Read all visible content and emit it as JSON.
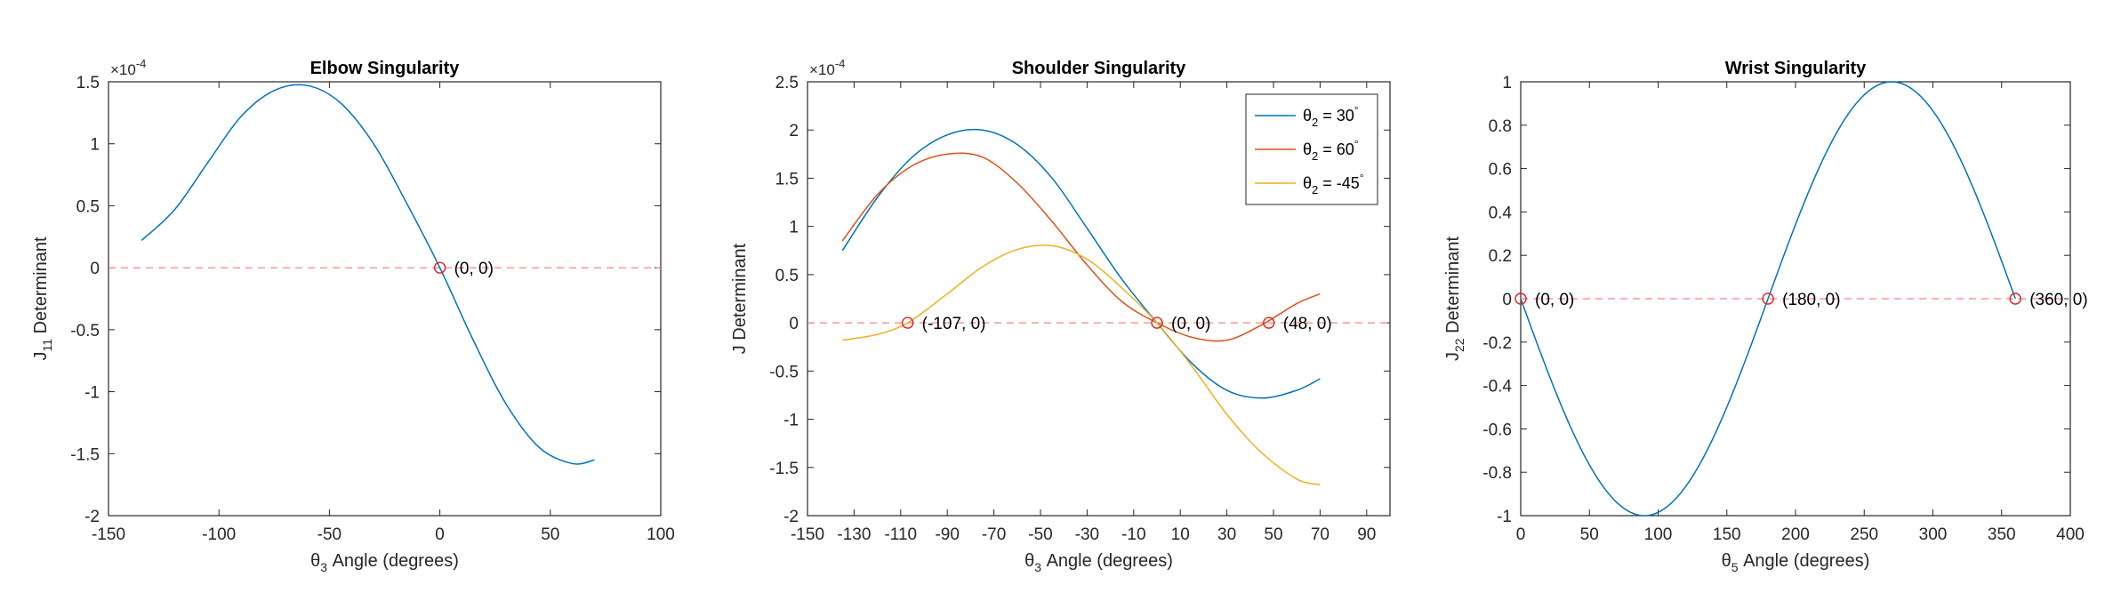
{
  "chart_data": [
    {
      "type": "line",
      "title": "Elbow Singularity",
      "xlabel": {
        "sym": "θ",
        "sub": "3",
        "rest": " Angle (degrees)"
      },
      "ylabel": {
        "sym": "J",
        "sub": "11",
        "rest": " Determinant"
      },
      "exponent": {
        "base": "×10",
        "power": "-4"
      },
      "xlim": [
        -150,
        100
      ],
      "ylim": [
        -2,
        1.5
      ],
      "xticks": [
        -150,
        -100,
        -50,
        0,
        50,
        100
      ],
      "xtick_labels": [
        "-150",
        "-100",
        "-50",
        "0",
        "50",
        "100"
      ],
      "yticks": [
        -2,
        -1.5,
        -1,
        -0.5,
        0,
        0.5,
        1,
        1.5
      ],
      "ytick_labels": [
        "-2",
        "-1.5",
        "-1",
        "-0.5",
        "0",
        "0.5",
        "1",
        "1.5"
      ],
      "series": [
        {
          "name": "J11",
          "color": "#0072BD",
          "x": [
            -135,
            -120,
            -105,
            -90,
            -75,
            -60,
            -45,
            -30,
            -15,
            0,
            15,
            30,
            45,
            60,
            70
          ],
          "y": [
            0.22,
            0.47,
            0.85,
            1.22,
            1.43,
            1.47,
            1.33,
            1.0,
            0.52,
            0.0,
            -0.58,
            -1.1,
            -1.45,
            -1.58,
            -1.55
          ]
        }
      ],
      "reference_line": {
        "y": 0,
        "color": "#FF8080"
      },
      "markers": [
        {
          "x": 0,
          "y": 0,
          "label": "(0, 0)"
        }
      ]
    },
    {
      "type": "line",
      "title": "Shoulder Singularity",
      "xlabel": {
        "sym": "θ",
        "sub": "3",
        "rest": " Angle (degrees)"
      },
      "ylabel": {
        "sym": "J",
        "sub": "",
        "rest": " Determinant"
      },
      "exponent": {
        "base": "×10",
        "power": "-4"
      },
      "xlim": [
        -150,
        100
      ],
      "ylim": [
        -2,
        2.5
      ],
      "xticks": [
        -150,
        -130,
        -110,
        -90,
        -70,
        -50,
        -30,
        -10,
        10,
        30,
        50,
        70,
        90
      ],
      "xtick_labels": [
        "-150",
        "-130",
        "-110",
        "-90",
        "-70",
        "-50",
        "-30",
        "-10",
        "10",
        "30",
        "50",
        "70",
        "90"
      ],
      "yticks": [
        -2,
        -1.5,
        -1,
        -0.5,
        0,
        0.5,
        1,
        1.5,
        2,
        2.5
      ],
      "ytick_labels": [
        "-2",
        "-1.5",
        "-1",
        "-0.5",
        "0",
        "0.5",
        "1",
        "1.5",
        "2",
        "2.5"
      ],
      "legend": {
        "position": "top-right"
      },
      "series": [
        {
          "name": "θ2 = 30°",
          "legend_sub": "2",
          "legend_val": " = 30",
          "color": "#0072BD",
          "x": [
            -135,
            -120,
            -105,
            -90,
            -75,
            -60,
            -45,
            -30,
            -15,
            0,
            15,
            30,
            45,
            60,
            70
          ],
          "y": [
            0.75,
            1.3,
            1.72,
            1.95,
            2.0,
            1.85,
            1.5,
            0.98,
            0.45,
            0.0,
            -0.42,
            -0.7,
            -0.78,
            -0.7,
            -0.58
          ]
        },
        {
          "name": "θ2 = 60°",
          "legend_sub": "2",
          "legend_val": " = 60",
          "color": "#D95319",
          "x": [
            -135,
            -120,
            -105,
            -90,
            -75,
            -60,
            -45,
            -30,
            -15,
            0,
            15,
            30,
            45,
            60,
            70
          ],
          "y": [
            0.85,
            1.33,
            1.63,
            1.75,
            1.72,
            1.45,
            1.05,
            0.6,
            0.22,
            0.0,
            -0.15,
            -0.18,
            -0.02,
            0.2,
            0.3
          ]
        },
        {
          "name": "θ2 = -45°",
          "legend_sub": "2",
          "legend_val": " = -45",
          "color": "#EDB120",
          "x": [
            -135,
            -120,
            -107,
            -90,
            -75,
            -60,
            -45,
            -30,
            -15,
            0,
            15,
            30,
            45,
            60,
            70
          ],
          "y": [
            -0.18,
            -0.12,
            0.0,
            0.3,
            0.58,
            0.76,
            0.8,
            0.66,
            0.36,
            0.0,
            -0.45,
            -0.95,
            -1.35,
            -1.62,
            -1.68
          ]
        }
      ],
      "reference_line": {
        "y": 0,
        "color": "#FF8080"
      },
      "markers": [
        {
          "x": -107,
          "y": 0,
          "label": "(-107, 0)"
        },
        {
          "x": 0,
          "y": 0,
          "label": "(0, 0)"
        },
        {
          "x": 48,
          "y": 0,
          "label": "(48, 0)"
        }
      ]
    },
    {
      "type": "line",
      "title": "Wrist Singularity",
      "xlabel": {
        "sym": "θ",
        "sub": "5",
        "rest": " Angle (degrees)"
      },
      "ylabel": {
        "sym": "J",
        "sub": "22",
        "rest": " Determinant"
      },
      "exponent": null,
      "xlim": [
        0,
        400
      ],
      "ylim": [
        -1,
        1
      ],
      "xticks": [
        0,
        50,
        100,
        150,
        200,
        250,
        300,
        350,
        400
      ],
      "xtick_labels": [
        "0",
        "50",
        "100",
        "150",
        "200",
        "250",
        "300",
        "350",
        "400"
      ],
      "yticks": [
        -1,
        -0.8,
        -0.6,
        -0.4,
        -0.2,
        0,
        0.2,
        0.4,
        0.6,
        0.8,
        1
      ],
      "ytick_labels": [
        "-1",
        "-0.8",
        "-0.6",
        "-0.4",
        "-0.2",
        "0",
        "0.2",
        "0.4",
        "0.6",
        "0.8",
        "1"
      ],
      "series": [
        {
          "name": "J22",
          "color": "#0072BD",
          "function": "-sin(x)",
          "x_range": [
            0,
            360
          ]
        }
      ],
      "reference_line": {
        "y": 0,
        "color": "#FF8080"
      },
      "markers": [
        {
          "x": 0,
          "y": 0,
          "label": "(0, 0)"
        },
        {
          "x": 180,
          "y": 0,
          "label": "(180, 0)"
        },
        {
          "x": 360,
          "y": 0,
          "label": "(360, 0)"
        }
      ]
    }
  ]
}
